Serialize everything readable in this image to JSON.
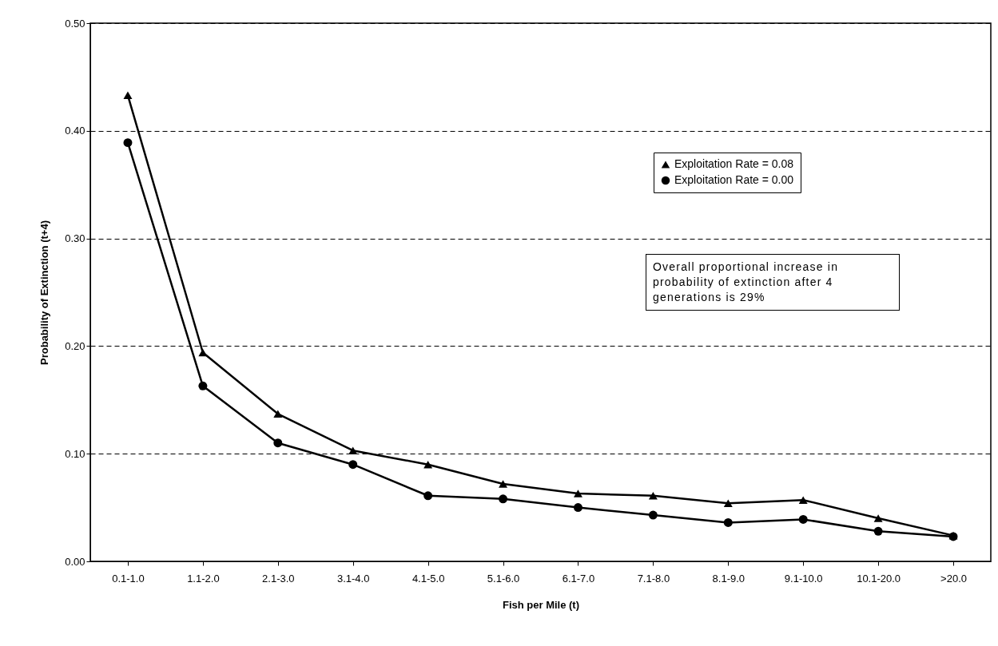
{
  "chart_data": {
    "type": "line",
    "xlabel": "Fish per Mile (t)",
    "ylabel": "Probability of Extinction (t+4)",
    "categories": [
      "0.1-1.0",
      "1.1-2.0",
      "2.1-3.0",
      "3.1-4.0",
      "4.1-5.0",
      "5.1-6.0",
      "6.1-7.0",
      "7.1-8.0",
      "8.1-9.0",
      "9.1-10.0",
      "10.1-20.0",
      ">20.0"
    ],
    "series": [
      {
        "name": "Exploitation Rate = 0.08",
        "color": "#000000",
        "marker": "triangle",
        "values": [
          0.433,
          0.194,
          0.137,
          0.103,
          0.09,
          0.072,
          0.063,
          0.061,
          0.054,
          0.057,
          0.04,
          0.024
        ]
      },
      {
        "name": "Exploitation Rate = 0.00",
        "color": "#000000",
        "marker": "circle",
        "values": [
          0.389,
          0.163,
          0.11,
          0.09,
          0.061,
          0.058,
          0.05,
          0.043,
          0.036,
          0.039,
          0.028,
          0.023
        ]
      }
    ],
    "ylim": [
      0,
      0.5
    ],
    "yticks": [
      {
        "value": 0,
        "label": "0.00"
      },
      {
        "value": 0.1,
        "label": "0.10"
      },
      {
        "value": 0.2,
        "label": "0.20"
      },
      {
        "value": 0.3,
        "label": "0.30"
      },
      {
        "value": 0.4,
        "label": "0.40"
      },
      {
        "value": 0.5,
        "label": "0.50"
      }
    ],
    "grid": "y",
    "legend": "top right",
    "line_style": "solid",
    "annotations": [
      "Overall proportional increase in probability of extinction after 4 generations is 29%"
    ]
  }
}
